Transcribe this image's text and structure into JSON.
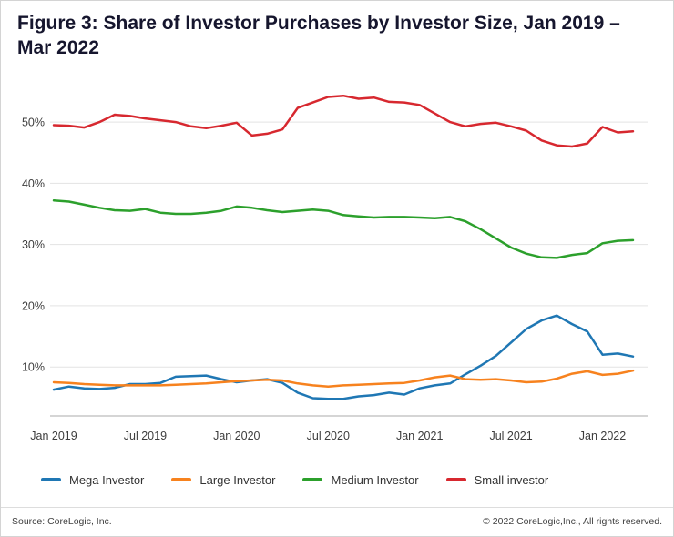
{
  "title": "Figure 3: Share of Investor Purchases by Investor Size, Jan 2019 – Mar 2022",
  "footer": {
    "source": "Source: CoreLogic, Inc.",
    "copyright": "© 2022 CoreLogic,Inc., All rights reserved."
  },
  "chart_data": {
    "type": "line",
    "title": "Figure 3: Share of Investor Purchases by Investor Size, Jan 2019 – Mar 2022",
    "x": [
      "Jan 2019",
      "Feb 2019",
      "Mar 2019",
      "Apr 2019",
      "May 2019",
      "Jun 2019",
      "Jul 2019",
      "Aug 2019",
      "Sep 2019",
      "Oct 2019",
      "Nov 2019",
      "Dec 2019",
      "Jan 2020",
      "Feb 2020",
      "Mar 2020",
      "Apr 2020",
      "May 2020",
      "Jun 2020",
      "Jul 2020",
      "Aug 2020",
      "Sep 2020",
      "Oct 2020",
      "Nov 2020",
      "Dec 2020",
      "Jan 2021",
      "Feb 2021",
      "Mar 2021",
      "Apr 2021",
      "May 2021",
      "Jun 2021",
      "Jul 2021",
      "Aug 2021",
      "Sep 2021",
      "Oct 2021",
      "Nov 2021",
      "Dec 2021",
      "Jan 2022",
      "Feb 2022",
      "Mar 2022"
    ],
    "x_tick_indices": [
      0,
      6,
      12,
      18,
      24,
      30,
      36
    ],
    "ylim": [
      2,
      57
    ],
    "yticks": [
      10,
      20,
      30,
      40,
      50
    ],
    "ytick_suffix": "%",
    "grid": "horizontal",
    "legend_position": "bottom",
    "series": [
      {
        "name": "Mega Investor",
        "color": "#1f77b4",
        "values": [
          6.3,
          6.8,
          6.5,
          6.4,
          6.6,
          7.2,
          7.2,
          7.4,
          8.4,
          8.5,
          8.6,
          8.0,
          7.5,
          7.8,
          8.0,
          7.4,
          5.8,
          4.9,
          4.8,
          4.8,
          5.2,
          5.4,
          5.8,
          5.5,
          6.5,
          7.0,
          7.3,
          8.8,
          10.2,
          11.8,
          14.0,
          16.2,
          17.6,
          18.4,
          17.0,
          15.8,
          12.0,
          12.2,
          11.7
        ]
      },
      {
        "name": "Large Investor",
        "color": "#f7821e",
        "values": [
          7.5,
          7.4,
          7.2,
          7.1,
          7.0,
          7.0,
          7.0,
          7.0,
          7.1,
          7.2,
          7.3,
          7.5,
          7.7,
          7.8,
          7.9,
          7.8,
          7.3,
          7.0,
          6.8,
          7.0,
          7.1,
          7.2,
          7.3,
          7.4,
          7.8,
          8.3,
          8.6,
          8.0,
          7.9,
          8.0,
          7.8,
          7.5,
          7.6,
          8.1,
          8.9,
          9.3,
          8.7,
          8.9,
          9.4
        ]
      },
      {
        "name": "Medium Investor",
        "color": "#2ca02c",
        "values": [
          37.2,
          37.0,
          36.5,
          36.0,
          35.6,
          35.5,
          35.8,
          35.2,
          35.0,
          35.0,
          35.2,
          35.5,
          36.2,
          36.0,
          35.6,
          35.3,
          35.5,
          35.7,
          35.5,
          34.8,
          34.6,
          34.4,
          34.5,
          34.5,
          34.4,
          34.3,
          34.5,
          33.8,
          32.5,
          31.0,
          29.5,
          28.5,
          27.9,
          27.8,
          28.3,
          28.6,
          30.2,
          30.6,
          30.7
        ]
      },
      {
        "name": "Small investor",
        "color": "#d7282f",
        "values": [
          49.5,
          49.4,
          49.1,
          50.0,
          51.2,
          51.0,
          50.6,
          50.3,
          50.0,
          49.3,
          49.0,
          49.4,
          49.9,
          47.8,
          48.1,
          48.8,
          52.3,
          53.2,
          54.1,
          54.3,
          53.8,
          54.0,
          53.3,
          53.2,
          52.8,
          51.4,
          50.0,
          49.3,
          49.7,
          49.9,
          49.3,
          48.6,
          47.0,
          46.2,
          46.0,
          46.5,
          49.2,
          48.3,
          48.5
        ]
      }
    ]
  }
}
